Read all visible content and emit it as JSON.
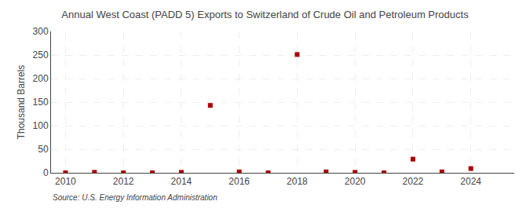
{
  "chart_data": {
    "type": "scatter",
    "title": "Annual West Coast (PADD 5) Exports to Switzerland of Crude Oil and Petroleum Products",
    "ylabel": "Thousand Barrels",
    "annotations": [
      "Source: U.S. Energy Information Administration"
    ],
    "x": [
      2010,
      2011,
      2012,
      2013,
      2014,
      2015,
      2016,
      2017,
      2018,
      2019,
      2020,
      2021,
      2022,
      2023,
      2024
    ],
    "values": [
      0,
      1,
      0,
      0,
      1,
      143,
      2,
      0,
      251,
      2,
      1,
      0,
      29,
      2,
      9
    ],
    "color": "#aa0000",
    "marker": "square",
    "xlim": [
      2009.5,
      2025.5
    ],
    "ylim": [
      0,
      300
    ],
    "xticks": [
      2010,
      2012,
      2014,
      2016,
      2018,
      2020,
      2022,
      2024
    ],
    "yticks": [
      0,
      50,
      100,
      150,
      200,
      250,
      300
    ],
    "grid": true
  }
}
